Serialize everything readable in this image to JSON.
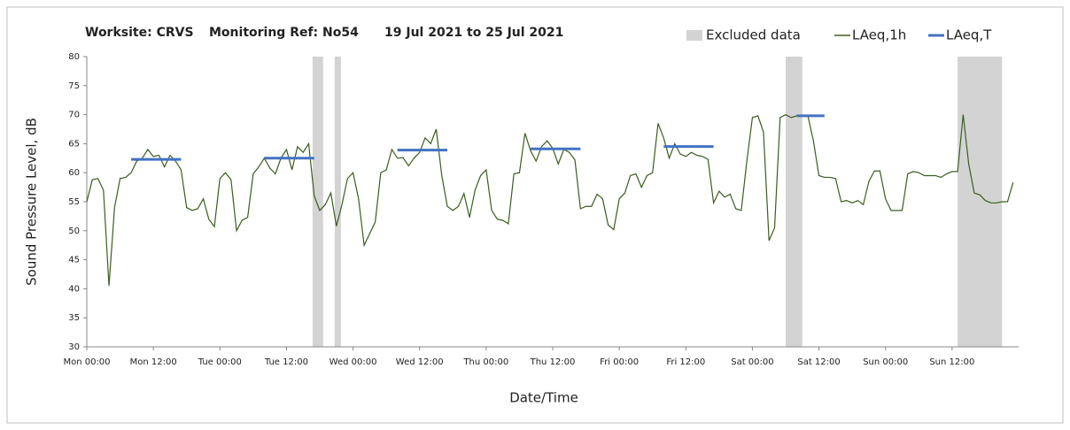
{
  "chart_data": {
    "type": "line",
    "title_parts": [
      "Worksite: CRVS",
      "Monitoring Ref: No54",
      "19 Jul 2021 to 25 Jul 2021"
    ],
    "x_label": "Date/Time",
    "y_label": "Sound Pressure Level, dB",
    "legend_excluded": "Excluded data",
    "excluded_color": "#d3d3d3",
    "excluded": [
      [
        40.7,
        42.6
      ],
      [
        44.7,
        45.8
      ],
      [
        126,
        129
      ],
      [
        157,
        165
      ]
    ],
    "x": [
      0,
      1,
      2,
      3,
      4,
      5,
      6,
      7,
      8,
      9,
      10,
      11,
      12,
      13,
      14,
      15,
      16,
      17,
      18,
      19,
      20,
      21,
      22,
      23,
      24,
      25,
      26,
      27,
      28,
      29,
      30,
      31,
      32,
      33,
      34,
      35,
      36,
      37,
      38,
      39,
      40,
      41,
      42,
      43,
      44,
      45,
      46,
      47,
      48,
      49,
      50,
      51,
      52,
      53,
      54,
      55,
      56,
      57,
      58,
      59,
      60,
      61,
      62,
      63,
      64,
      65,
      66,
      67,
      68,
      69,
      70,
      71,
      72,
      73,
      74,
      75,
      76,
      77,
      78,
      79,
      80,
      81,
      82,
      83,
      84,
      85,
      86,
      87,
      88,
      89,
      90,
      91,
      92,
      93,
      94,
      95,
      96,
      97,
      98,
      99,
      100,
      101,
      102,
      103,
      104,
      105,
      106,
      107,
      108,
      109,
      110,
      111,
      112,
      113,
      114,
      115,
      116,
      117,
      118,
      119,
      120,
      121,
      122,
      123,
      124,
      125,
      126,
      127,
      128,
      129,
      130,
      131,
      132,
      133,
      134,
      135,
      136,
      137,
      138,
      139,
      140,
      141,
      142,
      143,
      144,
      145,
      146,
      147,
      148,
      149,
      150,
      151,
      152,
      153,
      154,
      155,
      156,
      157,
      158,
      159,
      160,
      161,
      162,
      163,
      164,
      165,
      166,
      167
    ],
    "series": [
      {
        "name": "LAeq,1h",
        "color": "#3b5e1e",
        "values": [
          55,
          58.8,
          59,
          57,
          40.5,
          54,
          59,
          59.2,
          60,
          62,
          62.5,
          64,
          62.8,
          63,
          61,
          63,
          62,
          60.5,
          54,
          53.5,
          53.8,
          55.5,
          52,
          50.7,
          59,
          60,
          58.8,
          50,
          51.8,
          52.3,
          59.8,
          61,
          62.5,
          60.8,
          59.8,
          62.5,
          64,
          60.5,
          64.5,
          63.5,
          65,
          56,
          53.5,
          54.5,
          56.5,
          50.8,
          54.5,
          59,
          60,
          55.5,
          47.5,
          49.5,
          51.5,
          60,
          60.5,
          64,
          62.5,
          62.6,
          61.2,
          62.5,
          63.5,
          66,
          65,
          67.5,
          59.5,
          54.2,
          53.5,
          54.2,
          56.4,
          52.3,
          57,
          59.5,
          60.5,
          53.5,
          52,
          51.8,
          51.2,
          59.8,
          60,
          66.8,
          63.8,
          62,
          64.5,
          65.5,
          64.2,
          61.5,
          64,
          63.5,
          62.2,
          53.8,
          54.2,
          54.2,
          56.3,
          55.5,
          51,
          50.2,
          55.5,
          56.5,
          59.5,
          59.8,
          57.5,
          59.5,
          60,
          68.5,
          66,
          62.5,
          65,
          63.2,
          62.8,
          63.5,
          63,
          62.8,
          62.3,
          54.8,
          56.8,
          55.8,
          56.3,
          53.8,
          53.5,
          62,
          69.5,
          69.8,
          67,
          48.3,
          50.5,
          69.5,
          70,
          69.5,
          69.8,
          69.8,
          69.8,
          65.5,
          59.5,
          59.2,
          59.2,
          59,
          55,
          55.2,
          54.8,
          55.2,
          54.5,
          58.5,
          60.3,
          60.3,
          55.5,
          53.5,
          53.5,
          53.5,
          59.8,
          60.2,
          60,
          59.5,
          59.5,
          59.5,
          59.2,
          59.8,
          60.2,
          60.2,
          70,
          61.5,
          56.5,
          56.2,
          55.2,
          54.8,
          54.8,
          55,
          55,
          58.3
        ]
      },
      {
        "name": "LAeq,T",
        "color": "#4472c4",
        "segments": [
          {
            "start": 8,
            "end": 17,
            "value": 62.3
          },
          {
            "start": 32,
            "end": 41,
            "value": 62.5
          },
          {
            "start": 56,
            "end": 65,
            "value": 63.9
          },
          {
            "start": 80,
            "end": 89,
            "value": 64.1
          },
          {
            "start": 104,
            "end": 113,
            "value": 64.5
          },
          {
            "start": 128,
            "end": 133,
            "value": 69.8
          }
        ]
      }
    ],
    "xlim": [
      0,
      168
    ],
    "xticks": [
      {
        "value": 0,
        "label": "Mon 00:00"
      },
      {
        "value": 12,
        "label": "Mon 12:00"
      },
      {
        "value": 24,
        "label": "Tue 00:00"
      },
      {
        "value": 36,
        "label": "Tue 12:00"
      },
      {
        "value": 48,
        "label": "Wed 00:00"
      },
      {
        "value": 60,
        "label": "Wed 12:00"
      },
      {
        "value": 72,
        "label": "Thu 00:00"
      },
      {
        "value": 84,
        "label": "Thu 12:00"
      },
      {
        "value": 96,
        "label": "Fri 00:00"
      },
      {
        "value": 108,
        "label": "Fri 12:00"
      },
      {
        "value": 120,
        "label": "Sat 00:00"
      },
      {
        "value": 132,
        "label": "Sat 12:00"
      },
      {
        "value": 144,
        "label": "Sun 00:00"
      },
      {
        "value": 156,
        "label": "Sun 12:00"
      }
    ],
    "ylim": [
      30,
      80
    ],
    "yticks": [
      30,
      35,
      40,
      45,
      50,
      55,
      60,
      65,
      70,
      75,
      80
    ],
    "grid": false
  }
}
